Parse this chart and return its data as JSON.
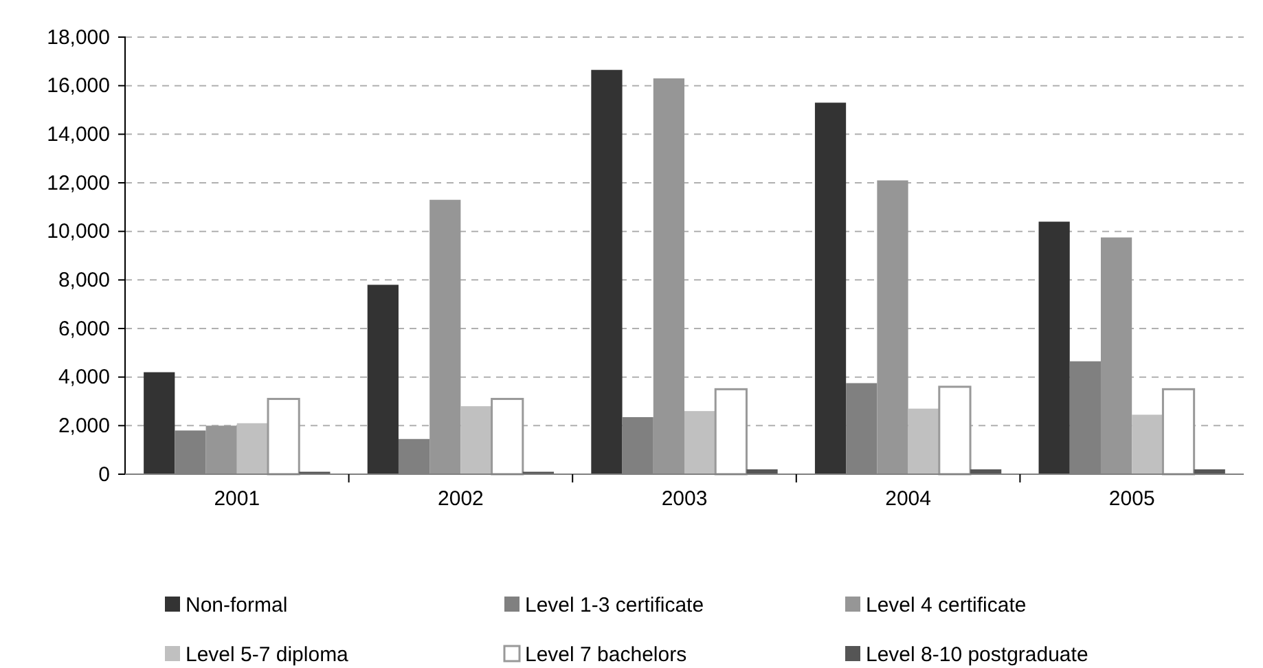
{
  "chart_data": {
    "type": "bar",
    "categories": [
      "2001",
      "2002",
      "2003",
      "2004",
      "2005"
    ],
    "series": [
      {
        "name": "Non-formal",
        "color": "#333333",
        "values": [
          4200,
          7800,
          16650,
          15300,
          10400
        ]
      },
      {
        "name": "Level 1-3 certificate",
        "color": "#808080",
        "values": [
          1800,
          1450,
          2350,
          3750,
          4650
        ]
      },
      {
        "name": "Level 4 certificate",
        "color": "#969696",
        "values": [
          2000,
          11300,
          16300,
          12100,
          9750
        ]
      },
      {
        "name": "Level 5-7 diploma",
        "color": "#c0c0c0",
        "values": [
          2100,
          2800,
          2600,
          2700,
          2450
        ]
      },
      {
        "name": "Level 7 bachelors",
        "color": "#ffffff",
        "values": [
          3100,
          3100,
          3500,
          3600,
          3500
        ]
      },
      {
        "name": "Level 8-10 postgraduate",
        "color": "#555555",
        "values": [
          100,
          100,
          200,
          200,
          200
        ]
      }
    ],
    "ylim": [
      0,
      18000
    ],
    "yticks": [
      {
        "value": 0,
        "label": "0"
      },
      {
        "value": 2000,
        "label": "2,000"
      },
      {
        "value": 4000,
        "label": "4,000"
      },
      {
        "value": 6000,
        "label": "6,000"
      },
      {
        "value": 8000,
        "label": "8,000"
      },
      {
        "value": 10000,
        "label": "10,000"
      },
      {
        "value": 12000,
        "label": "12,000"
      },
      {
        "value": 14000,
        "label": "14,000"
      },
      {
        "value": 16000,
        "label": "16,000"
      },
      {
        "value": 18000,
        "label": "18,000"
      }
    ],
    "grid": "y",
    "legend": "bottom"
  }
}
